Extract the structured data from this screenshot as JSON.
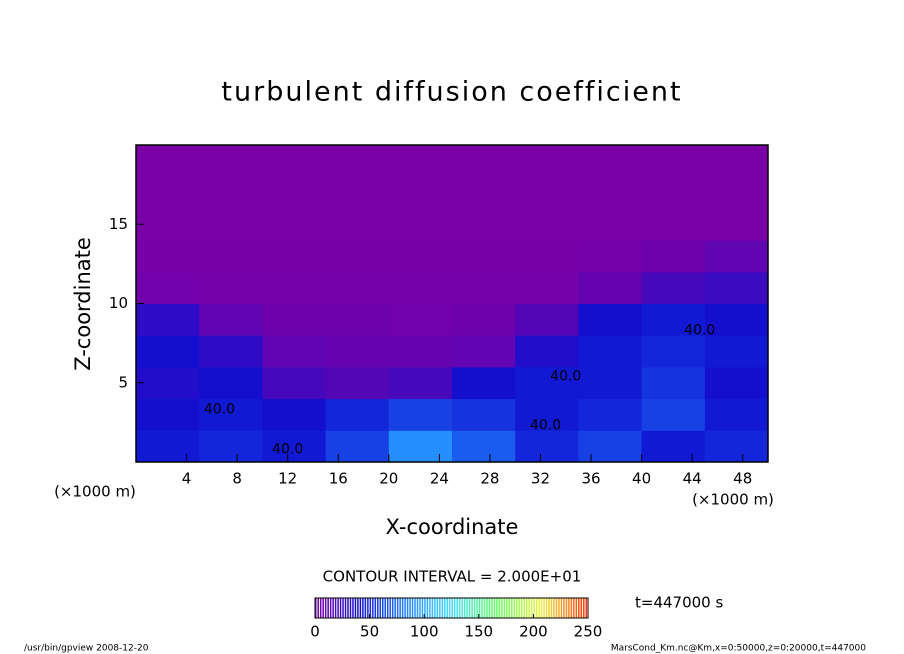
{
  "chart_data": {
    "type": "heatmap",
    "title": "turbulent diffusion coefficient",
    "x_label": "X-coordinate",
    "y_label": "Z-coordinate",
    "x_unit": "(×1000 m)",
    "y_unit": "(×1000 m)",
    "xlim": [
      0,
      50
    ],
    "ylim": [
      0,
      20
    ],
    "xticks": [
      4,
      8,
      12,
      16,
      20,
      24,
      28,
      32,
      36,
      40,
      44,
      48
    ],
    "yticks": [
      5,
      10,
      15
    ],
    "xbins": [
      0,
      5,
      10,
      15,
      20,
      25,
      30,
      35,
      40,
      45,
      50
    ],
    "ybins": [
      0,
      2,
      4,
      6,
      8,
      10,
      12,
      14,
      16,
      18,
      20
    ],
    "z": [
      [
        45,
        50,
        45,
        60,
        90,
        70,
        50,
        60,
        45,
        50
      ],
      [
        40,
        45,
        40,
        50,
        60,
        55,
        45,
        50,
        60,
        45
      ],
      [
        35,
        40,
        20,
        15,
        20,
        40,
        45,
        45,
        55,
        40
      ],
      [
        40,
        30,
        10,
        8,
        8,
        10,
        35,
        45,
        50,
        45
      ],
      [
        30,
        10,
        5,
        5,
        3,
        5,
        15,
        40,
        45,
        40
      ],
      [
        3,
        2,
        2,
        2,
        2,
        2,
        2,
        8,
        20,
        25
      ],
      [
        1,
        1,
        1,
        1,
        1,
        1,
        1,
        2,
        5,
        10
      ],
      [
        0,
        0,
        0,
        0,
        0,
        0,
        0,
        0,
        0,
        0
      ],
      [
        0,
        0,
        0,
        0,
        0,
        0,
        0,
        0,
        0,
        0
      ],
      [
        0,
        0,
        0,
        0,
        0,
        0,
        0,
        0,
        0,
        0
      ]
    ],
    "colormap": [
      "#7a00a8",
      "#1010d0",
      "#2080ff",
      "#40e0ff",
      "#60ff60",
      "#f0f040",
      "#ff3000"
    ],
    "annotations": [
      {
        "text": "40.0",
        "x": 34,
        "y": 5.4
      },
      {
        "text": "40.0",
        "x": 32.4,
        "y": 2.3
      },
      {
        "text": "40.0",
        "x": 12,
        "y": 0.8
      },
      {
        "text": "40.0",
        "x": 6.6,
        "y": 3.3
      },
      {
        "text": "40.0",
        "x": 44.6,
        "y": 8.3
      }
    ],
    "contour_interval": "CONTOUR INTERVAL = 2.000E+01",
    "time_label": "t=447000 s",
    "colorbar": {
      "lim": [
        0,
        250
      ],
      "ticks": [
        0,
        50,
        100,
        150,
        200,
        250
      ]
    },
    "footer_left": "/usr/bin/gpview   2008-12-20",
    "footer_right": "MarsCond_Km.nc@Km,x=0:50000,z=0:20000,t=447000"
  }
}
